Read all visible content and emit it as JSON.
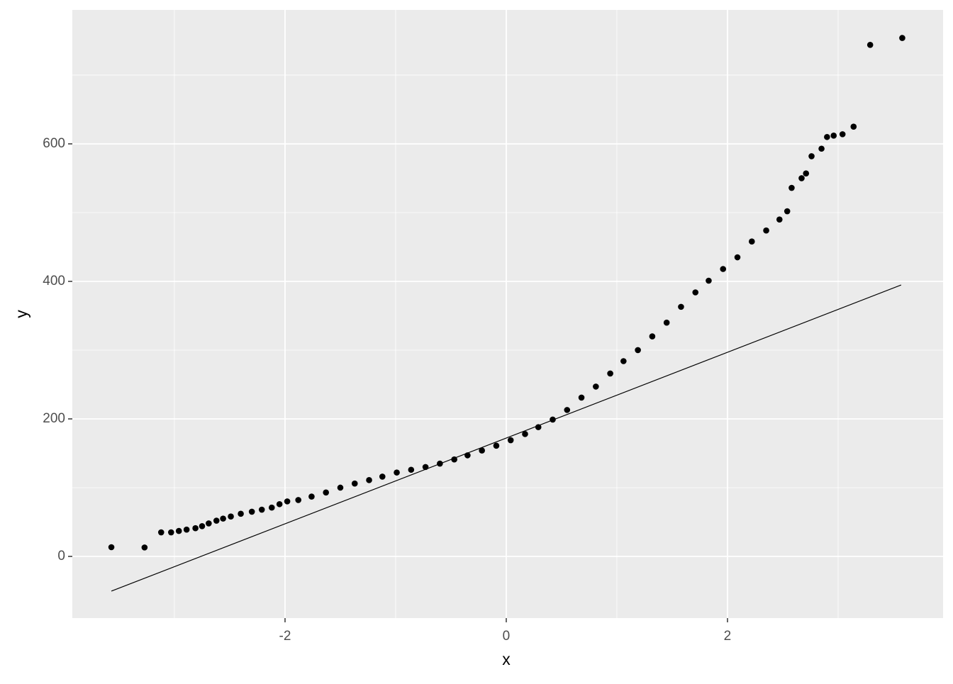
{
  "chart_data": {
    "type": "scatter",
    "xlabel": "x",
    "ylabel": "y",
    "xlim": [
      -3.923,
      3.949
    ],
    "ylim": [
      -89.7,
      794.8
    ],
    "xticks": [
      -2,
      0,
      2
    ],
    "yticks": [
      0,
      200,
      400,
      600
    ],
    "x_minor": [
      -3,
      -1,
      1,
      3
    ],
    "y_minor": [
      100,
      300,
      500,
      700
    ],
    "grid": true,
    "color": "#000000",
    "x": [
      -3.57,
      -3.27,
      -3.12,
      -3.03,
      -2.96,
      -2.89,
      -2.81,
      -2.75,
      -2.69,
      -2.62,
      -2.56,
      -2.49,
      -2.4,
      -2.3,
      -2.21,
      -2.12,
      -2.05,
      -1.98,
      -1.88,
      -1.76,
      -1.63,
      -1.5,
      -1.37,
      -1.24,
      -1.12,
      -0.99,
      -0.86,
      -0.73,
      -0.6,
      -0.47,
      -0.35,
      -0.22,
      -0.09,
      0.04,
      0.17,
      0.29,
      0.42,
      0.55,
      0.68,
      0.81,
      0.94,
      1.06,
      1.19,
      1.32,
      1.45,
      1.58,
      1.71,
      1.83,
      1.96,
      2.09,
      2.22,
      2.35,
      2.47,
      2.54,
      2.58,
      2.67,
      2.71,
      2.76,
      2.85,
      2.9,
      2.96,
      3.04,
      3.14,
      3.29,
      3.58
    ],
    "values": [
      13.4,
      13,
      35,
      35,
      37,
      39,
      41,
      44,
      48,
      52,
      55,
      58,
      62,
      65,
      68,
      71,
      76,
      80,
      82,
      87,
      93,
      100,
      106,
      111,
      116,
      122,
      126,
      130,
      135,
      141,
      147,
      154,
      161,
      169,
      178,
      188,
      199,
      213,
      231,
      247,
      266,
      284,
      300,
      320,
      340,
      363,
      384,
      401,
      418,
      435,
      458,
      474,
      490,
      502,
      536,
      550,
      557,
      582,
      593,
      610,
      612,
      614,
      625,
      744,
      754
    ],
    "reference_line": {
      "x": [
        -3.57,
        3.57
      ],
      "y": [
        -50.5,
        394.8
      ]
    }
  }
}
